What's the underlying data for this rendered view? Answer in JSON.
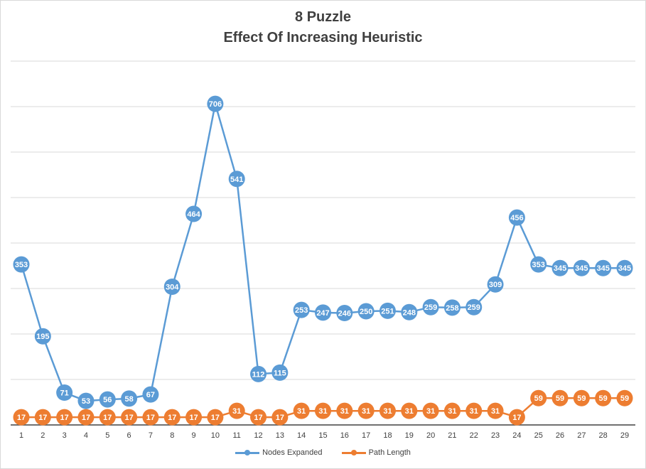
{
  "chart_data": {
    "type": "line",
    "title": "8 Puzzle",
    "subtitle": "Effect Of Increasing Heuristic",
    "x": [
      1,
      2,
      3,
      4,
      5,
      6,
      7,
      8,
      9,
      10,
      11,
      12,
      13,
      14,
      15,
      16,
      17,
      18,
      19,
      20,
      21,
      22,
      23,
      24,
      25,
      26,
      27,
      28,
      29
    ],
    "ylim": [
      0,
      800
    ],
    "grid": true,
    "legend": "bottom",
    "series": [
      {
        "name": "Nodes Expanded",
        "color": "#5b9bd5",
        "values": [
          353,
          195,
          71,
          53,
          56,
          58,
          67,
          304,
          464,
          706,
          541,
          112,
          115,
          253,
          247,
          246,
          250,
          251,
          248,
          259,
          258,
          259,
          309,
          456,
          353,
          345,
          345,
          345,
          345
        ]
      },
      {
        "name": "Path Length",
        "color": "#ed7d31",
        "values": [
          17,
          17,
          17,
          17,
          17,
          17,
          17,
          17,
          17,
          17,
          31,
          17,
          17,
          31,
          31,
          31,
          31,
          31,
          31,
          31,
          31,
          31,
          31,
          17,
          59,
          59,
          59,
          59,
          59
        ]
      }
    ]
  }
}
